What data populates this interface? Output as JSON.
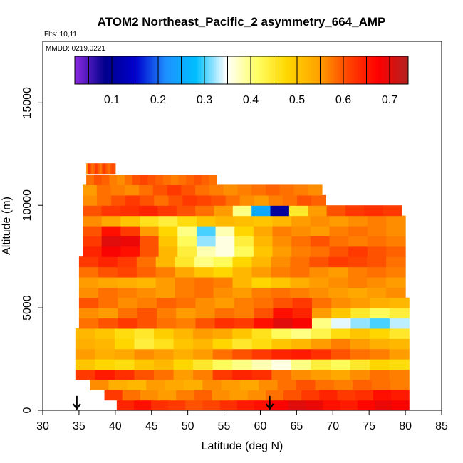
{
  "chart_data": {
    "type": "heatmap",
    "title": "ATOM2 Northeast_Pacific_2 asymmetry_664_AMP",
    "annotations": [
      "Flts: 10,11",
      "MMDD: 0219,0221"
    ],
    "xlabel": "Latitude (deg N)",
    "ylabel": "Altitude (m)",
    "xlim": [
      30,
      85
    ],
    "ylim": [
      0,
      18000
    ],
    "x_ticks": [
      30,
      35,
      40,
      45,
      50,
      55,
      60,
      65,
      70,
      75,
      80,
      85
    ],
    "y_ticks": [
      0,
      5000,
      10000,
      15000
    ],
    "colorbar": {
      "range": [
        0.02,
        0.74
      ],
      "ticks": [
        0.1,
        0.2,
        0.3,
        0.4,
        0.5,
        0.6,
        0.7
      ],
      "colors": [
        "#8a2be2",
        "#00008b",
        "#0000cd",
        "#1e90ff",
        "#00bfff",
        "#ffffff",
        "#ffff66",
        "#ffd700",
        "#ffa500",
        "#ff4500",
        "#ff0000",
        "#b22222"
      ]
    },
    "arrows_latitude": [
      34.7,
      61.3
    ],
    "bands": [
      {
        "alt": 250,
        "lat": [
          40.2,
          80.5
        ],
        "values": [
          0.64,
          0.66,
          0.63,
          0.62,
          0.6,
          0.61,
          0.63,
          0.65,
          0.66,
          0.68,
          0.7,
          0.69,
          0.66,
          0.65,
          0.67,
          0.69,
          0.68
        ]
      },
      {
        "alt": 750,
        "lat": [
          38.5,
          80.5
        ],
        "values": [
          0.62,
          0.58,
          0.56,
          0.55,
          0.57,
          0.59,
          0.56,
          0.55,
          0.56,
          0.58,
          0.6,
          0.62,
          0.64,
          0.62,
          0.63,
          0.66,
          0.65
        ]
      },
      {
        "alt": 1250,
        "lat": [
          36.5,
          80.5
        ],
        "values": [
          0.56,
          0.53,
          0.52,
          0.55,
          0.54,
          0.53,
          0.56,
          0.55,
          0.54,
          0.56,
          0.58,
          0.6,
          0.58,
          0.57,
          0.59,
          0.58,
          0.57
        ]
      },
      {
        "alt": 1750,
        "lat": [
          34.5,
          80.5
        ],
        "values": [
          0.62,
          0.65,
          0.63,
          0.6,
          0.58,
          0.55,
          0.57,
          0.62,
          0.64,
          0.63,
          0.58,
          0.56,
          0.55,
          0.54,
          0.56,
          0.58,
          0.57
        ]
      },
      {
        "alt": 2250,
        "lat": [
          34.5,
          80.5
        ],
        "values": [
          0.5,
          0.48,
          0.47,
          0.5,
          0.52,
          0.48,
          0.45,
          0.42,
          0.4,
          0.38,
          0.36,
          0.4,
          0.44,
          0.42,
          0.45,
          0.48,
          0.47
        ]
      },
      {
        "alt": 2750,
        "lat": [
          34.5,
          80.5
        ],
        "values": [
          0.55,
          0.53,
          0.54,
          0.56,
          0.55,
          0.53,
          0.55,
          0.58,
          0.6,
          0.62,
          0.64,
          0.65,
          0.63,
          0.6,
          0.58,
          0.57,
          0.55
        ]
      },
      {
        "alt": 3250,
        "lat": [
          34.5,
          80.5
        ],
        "values": [
          0.53,
          0.52,
          0.48,
          0.44,
          0.46,
          0.5,
          0.52,
          0.48,
          0.45,
          0.47,
          0.5,
          0.52,
          0.55,
          0.57,
          0.55,
          0.53,
          0.52
        ]
      },
      {
        "alt": 3750,
        "lat": [
          34.5,
          80.5
        ],
        "values": [
          0.52,
          0.5,
          0.47,
          0.45,
          0.49,
          0.52,
          0.55,
          0.54,
          0.5,
          0.46,
          0.42,
          0.4,
          0.43,
          0.47,
          0.5,
          0.48,
          0.45
        ]
      },
      {
        "alt": 4250,
        "lat": [
          35.0,
          80.5
        ],
        "values": [
          0.58,
          0.6,
          0.62,
          0.6,
          0.58,
          0.57,
          0.6,
          0.63,
          0.62,
          0.66,
          0.7,
          0.68,
          0.4,
          0.34,
          0.32,
          0.3,
          0.33
        ]
      },
      {
        "alt": 4750,
        "lat": [
          35.0,
          80.5
        ],
        "values": [
          0.56,
          0.55,
          0.58,
          0.6,
          0.57,
          0.55,
          0.56,
          0.58,
          0.57,
          0.6,
          0.66,
          0.64,
          0.55,
          0.5,
          0.45,
          0.42,
          0.44
        ]
      },
      {
        "alt": 5250,
        "lat": [
          35.0,
          80.5
        ],
        "values": [
          0.6,
          0.58,
          0.56,
          0.57,
          0.59,
          0.58,
          0.56,
          0.55,
          0.57,
          0.58,
          0.6,
          0.62,
          0.58,
          0.56,
          0.55,
          0.53,
          0.52
        ]
      },
      {
        "alt": 5750,
        "lat": [
          35.0,
          80.0
        ],
        "values": [
          0.56,
          0.58,
          0.57,
          0.56,
          0.55,
          0.57,
          0.58,
          0.56,
          0.55,
          0.57,
          0.58,
          0.57,
          0.56,
          0.55,
          0.54,
          0.55,
          0.56
        ]
      },
      {
        "alt": 6250,
        "lat": [
          35.0,
          80.0
        ],
        "values": [
          0.55,
          0.54,
          0.53,
          0.52,
          0.55,
          0.57,
          0.58,
          0.57,
          0.52,
          0.48,
          0.5,
          0.53,
          0.55,
          0.56,
          0.57,
          0.56,
          0.55
        ]
      },
      {
        "alt": 6750,
        "lat": [
          35.0,
          80.0
        ],
        "values": [
          0.58,
          0.6,
          0.61,
          0.59,
          0.57,
          0.54,
          0.5,
          0.48,
          0.52,
          0.55,
          0.57,
          0.58,
          0.56,
          0.55,
          0.57,
          0.58,
          0.57
        ]
      },
      {
        "alt": 7250,
        "lat": [
          35.0,
          80.0
        ],
        "values": [
          0.62,
          0.64,
          0.62,
          0.58,
          0.52,
          0.45,
          0.4,
          0.42,
          0.48,
          0.52,
          0.56,
          0.58,
          0.6,
          0.62,
          0.61,
          0.6,
          0.58
        ]
      },
      {
        "alt": 7750,
        "lat": [
          35.5,
          80.0
        ],
        "values": [
          0.64,
          0.68,
          0.66,
          0.6,
          0.52,
          0.44,
          0.38,
          0.36,
          0.42,
          0.5,
          0.55,
          0.57,
          0.58,
          0.6,
          0.62,
          0.6,
          0.59
        ]
      },
      {
        "alt": 8250,
        "lat": [
          35.5,
          80.0
        ],
        "values": [
          0.62,
          0.7,
          0.69,
          0.6,
          0.5,
          0.42,
          0.32,
          0.36,
          0.44,
          0.52,
          0.56,
          0.58,
          0.6,
          0.58,
          0.57,
          0.58,
          0.57
        ]
      },
      {
        "alt": 8750,
        "lat": [
          35.5,
          80.0
        ],
        "values": [
          0.6,
          0.66,
          0.62,
          0.55,
          0.48,
          0.4,
          0.3,
          0.38,
          0.48,
          0.54,
          0.57,
          0.56,
          0.55,
          0.57,
          0.58,
          0.57,
          0.56
        ]
      },
      {
        "alt": 9250,
        "lat": [
          35.5,
          80.0
        ],
        "values": [
          0.56,
          0.54,
          0.5,
          0.46,
          0.44,
          0.47,
          0.5,
          0.52,
          0.51,
          0.5,
          0.52,
          0.55,
          0.56,
          0.55,
          0.56,
          0.57,
          0.56
        ]
      },
      {
        "alt": 9750,
        "lat": [
          35.5,
          79.5
        ],
        "values": [
          0.6,
          0.62,
          0.63,
          0.64,
          0.62,
          0.6,
          0.58,
          0.55,
          0.4,
          0.25,
          0.1,
          0.45,
          0.55,
          0.6,
          0.62,
          0.63,
          0.62
        ]
      },
      {
        "alt": 10250,
        "lat": [
          35.5,
          69.0
        ],
        "values": [
          0.56,
          0.58,
          0.6,
          0.62,
          0.6,
          0.58,
          0.6,
          0.62,
          0.61,
          0.6,
          0.58,
          0.56,
          0.55,
          0.57,
          0.58,
          0.6,
          0.59
        ]
      },
      {
        "alt": 10750,
        "lat": [
          35.5,
          68.5
        ],
        "values": [
          0.55,
          0.58,
          0.57,
          0.56,
          0.58,
          0.6,
          0.62,
          0.6,
          0.58,
          0.57,
          0.56,
          0.57,
          0.58,
          0.59,
          0.58,
          0.57,
          0.56
        ]
      },
      {
        "alt": 11250,
        "lat": [
          36.0,
          54.0
        ],
        "values": [
          0.58,
          0.6,
          0.59,
          0.57,
          0.56,
          0.58,
          0.6,
          0.61,
          0.6,
          0.59,
          0.58,
          0.57,
          0.58,
          0.59,
          0.6,
          0.59,
          0.58
        ]
      },
      {
        "alt": 11800,
        "lat": [
          36.0,
          40.0
        ],
        "values": [
          0.56,
          0.62,
          0.6,
          0.58,
          0.59,
          0.62,
          0.61,
          0.59,
          0.57,
          0.6,
          0.62,
          0.6,
          0.59,
          0.58,
          0.6,
          0.61,
          0.6
        ]
      }
    ]
  }
}
